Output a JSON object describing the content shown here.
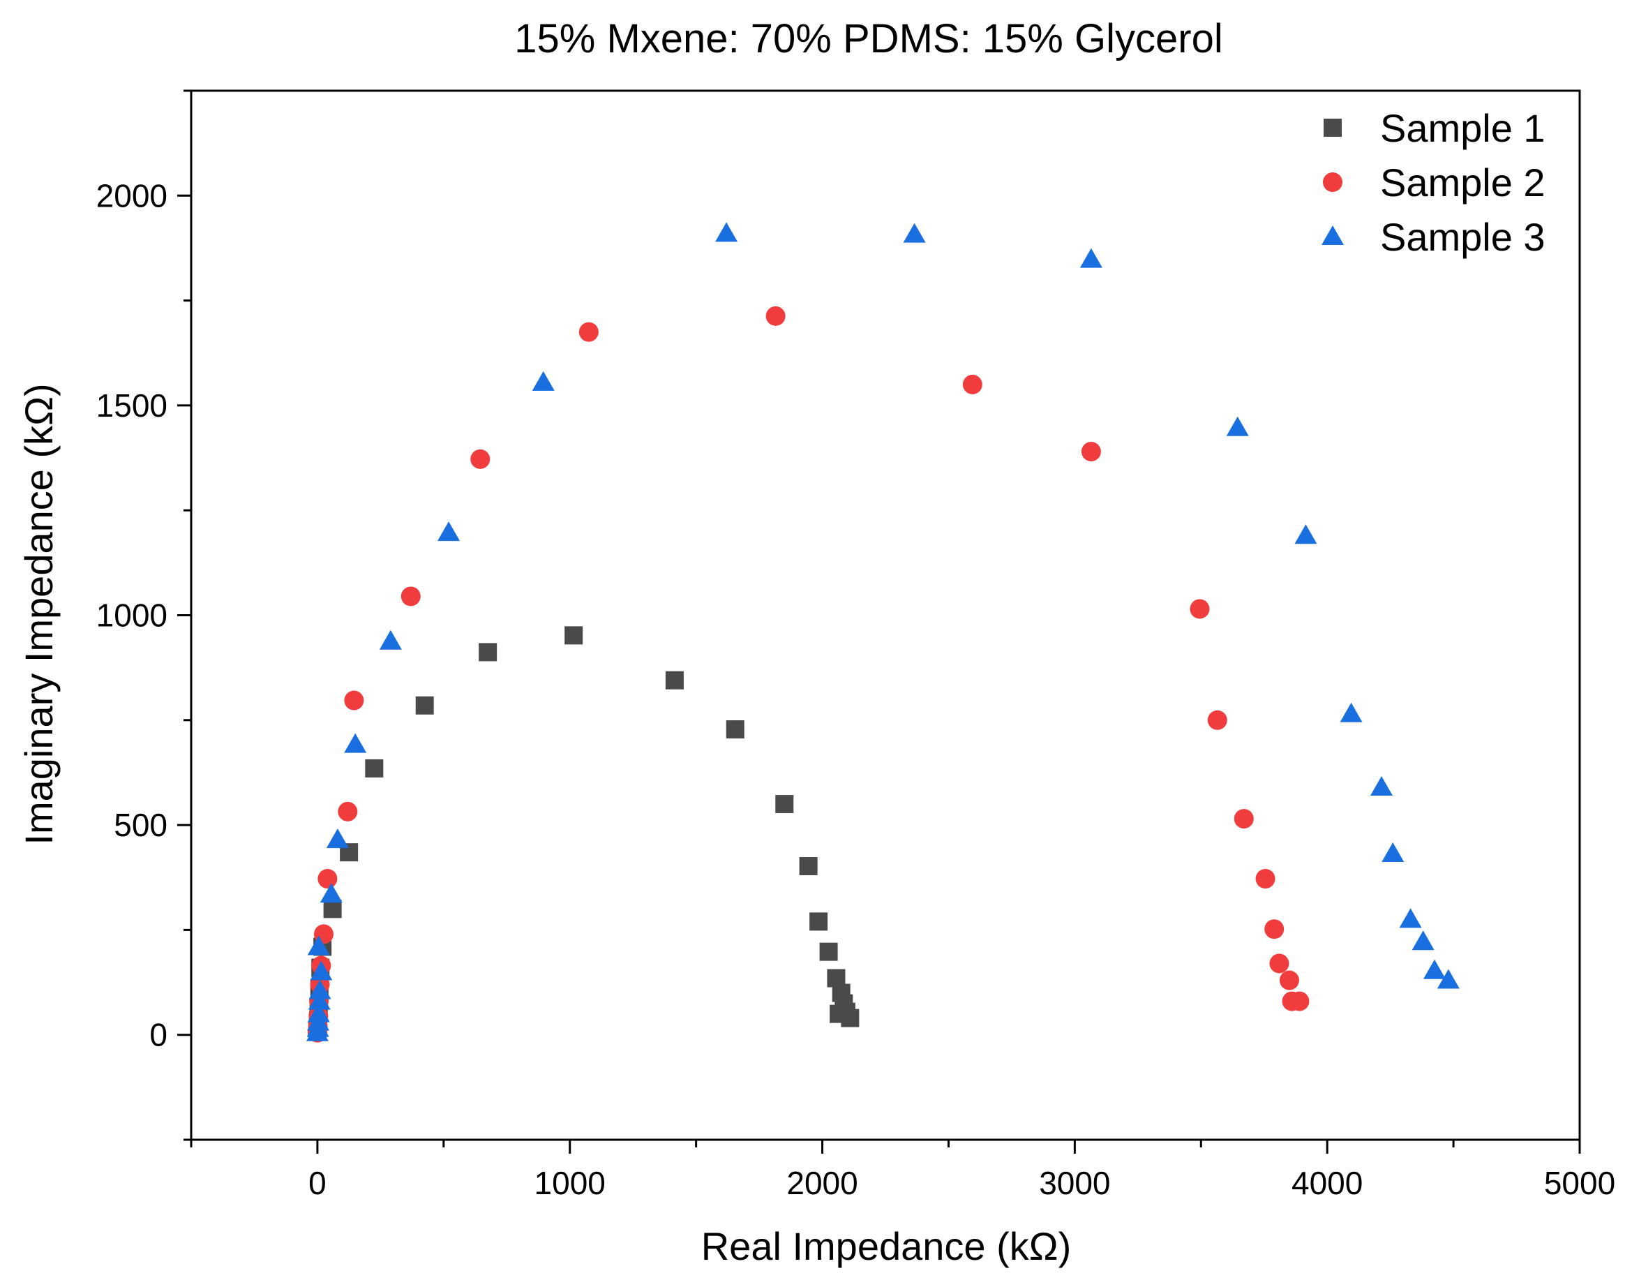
{
  "chart_data": {
    "type": "scatter",
    "title": "15% Mxene: 70% PDMS: 15% Glycerol",
    "xlabel": "Real Impedance (kΩ)",
    "ylabel": "Imaginary Impedance (kΩ)",
    "xlim": [
      -500,
      5000
    ],
    "ylim": [
      -250,
      2250
    ],
    "xticks": [
      0,
      1000,
      2000,
      3000,
      4000,
      5000
    ],
    "yticks": [
      0,
      500,
      1000,
      1500,
      2000
    ],
    "xtick_labels": [
      "0",
      "1000",
      "2000",
      "3000",
      "4000",
      "5000"
    ],
    "ytick_labels": [
      "0",
      "500",
      "1000",
      "1500",
      "2000"
    ],
    "grid": false,
    "legend_position": "top-right",
    "series": [
      {
        "name": "Sample 1",
        "marker": "square",
        "color": "#4a4a4a",
        "points": [
          [
            0,
            10
          ],
          [
            2,
            20
          ],
          [
            3,
            35
          ],
          [
            5,
            60
          ],
          [
            8,
            110
          ],
          [
            12,
            160
          ],
          [
            20,
            210
          ],
          [
            60,
            300
          ],
          [
            125,
            435
          ],
          [
            225,
            635
          ],
          [
            425,
            785
          ],
          [
            675,
            912
          ],
          [
            1015,
            952
          ],
          [
            1415,
            845
          ],
          [
            1655,
            728
          ],
          [
            1850,
            550
          ],
          [
            1945,
            402
          ],
          [
            1985,
            270
          ],
          [
            2025,
            198
          ],
          [
            2055,
            135
          ],
          [
            2075,
            100
          ],
          [
            2085,
            75
          ],
          [
            2095,
            55
          ],
          [
            2065,
            50
          ],
          [
            2110,
            40
          ]
        ]
      },
      {
        "name": "Sample 2",
        "marker": "circle",
        "color": "#f03c3c",
        "points": [
          [
            0,
            5
          ],
          [
            2,
            20
          ],
          [
            4,
            45
          ],
          [
            6,
            80
          ],
          [
            10,
            120
          ],
          [
            15,
            165
          ],
          [
            25,
            240
          ],
          [
            40,
            372
          ],
          [
            120,
            532
          ],
          [
            145,
            797
          ],
          [
            370,
            1045
          ],
          [
            645,
            1372
          ],
          [
            1075,
            1675
          ],
          [
            1815,
            1713
          ],
          [
            2595,
            1550
          ],
          [
            3065,
            1390
          ],
          [
            3495,
            1015
          ],
          [
            3565,
            750
          ],
          [
            3670,
            515
          ],
          [
            3755,
            372
          ],
          [
            3790,
            252
          ],
          [
            3810,
            170
          ],
          [
            3850,
            130
          ],
          [
            3860,
            80
          ],
          [
            3890,
            80
          ]
        ]
      },
      {
        "name": "Sample 3",
        "marker": "triangle",
        "color": "#1a6fe0",
        "points": [
          [
            0,
            5
          ],
          [
            2,
            15
          ],
          [
            3,
            30
          ],
          [
            5,
            50
          ],
          [
            8,
            80
          ],
          [
            10,
            105
          ],
          [
            15,
            150
          ],
          [
            5,
            210
          ],
          [
            55,
            335
          ],
          [
            80,
            465
          ],
          [
            150,
            692
          ],
          [
            290,
            938
          ],
          [
            520,
            1197
          ],
          [
            895,
            1555
          ],
          [
            1620,
            1910
          ],
          [
            2365,
            1908
          ],
          [
            3065,
            1848
          ],
          [
            3645,
            1447
          ],
          [
            3915,
            1190
          ],
          [
            4095,
            765
          ],
          [
            4215,
            590
          ],
          [
            4260,
            432
          ],
          [
            4330,
            275
          ],
          [
            4380,
            222
          ],
          [
            4425,
            153
          ],
          [
            4480,
            130
          ]
        ]
      }
    ]
  }
}
